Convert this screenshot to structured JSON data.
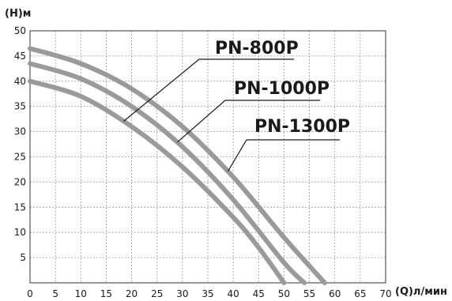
{
  "chart_data": {
    "type": "line",
    "ylabel": "(H)м",
    "xlabel": "(Q)л/мин",
    "xlim": [
      0,
      70
    ],
    "ylim": [
      0,
      50
    ],
    "x_ticks": [
      "0",
      "5",
      "10",
      "15",
      "20",
      "25",
      "30",
      "35",
      "40",
      "45",
      "50",
      "55",
      "60",
      "65",
      "70"
    ],
    "y_ticks": [
      "5",
      "10",
      "15",
      "20",
      "25",
      "30",
      "35",
      "40",
      "45",
      "50"
    ],
    "grid": "dashed",
    "line_color": "#9a9a9a",
    "series": [
      {
        "name": "PN-800P",
        "x": [
          0,
          10,
          20,
          30,
          40,
          45,
          50
        ],
        "y": [
          40,
          37,
          31,
          23,
          13,
          7,
          0
        ]
      },
      {
        "name": "PN-1000P",
        "x": [
          0,
          10,
          20,
          30,
          40,
          50,
          54
        ],
        "y": [
          43.5,
          40.5,
          35,
          27,
          16.5,
          4,
          0
        ]
      },
      {
        "name": "PN-1300P",
        "x": [
          0,
          10,
          20,
          30,
          40,
          50,
          58
        ],
        "y": [
          46.5,
          43.5,
          38.5,
          31,
          21,
          9,
          0
        ]
      }
    ]
  }
}
